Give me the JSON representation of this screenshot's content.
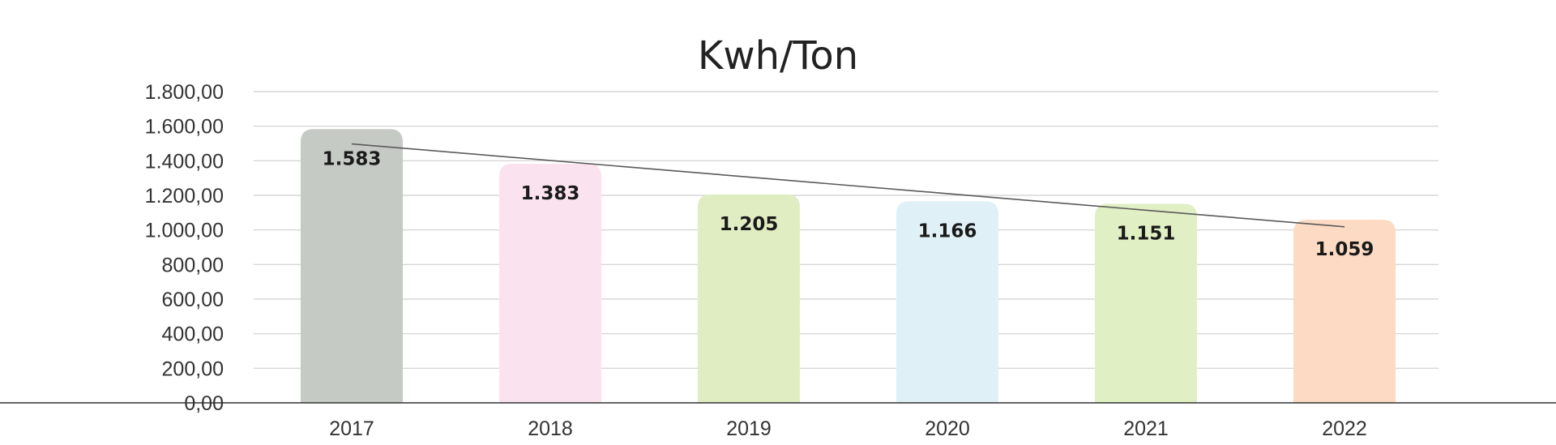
{
  "chart_data": {
    "type": "bar",
    "title": "Kwh/Ton",
    "xlabel": "",
    "ylabel": "",
    "categories": [
      "2017",
      "2018",
      "2019",
      "2020",
      "2021",
      "2022"
    ],
    "values": [
      1583,
      1383,
      1205,
      1166,
      1151,
      1059
    ],
    "data_labels": [
      "1.583",
      "1.383",
      "1.205",
      "1.166",
      "1.151",
      "1.059"
    ],
    "bar_colors": [
      "#c5cbc4",
      "#fae3ee",
      "#e0edc2",
      "#dff1f7",
      "#e1efc4",
      "#fcdac3"
    ],
    "trendline": {
      "type": "linear",
      "color": "#5a5a5a"
    },
    "ylim": [
      0,
      1800
    ],
    "y_ticks": [
      {
        "value": 0,
        "label": "0,00"
      },
      {
        "value": 200,
        "label": "200,00"
      },
      {
        "value": 400,
        "label": "400,00"
      },
      {
        "value": 600,
        "label": "600,00"
      },
      {
        "value": 800,
        "label": "800,00"
      },
      {
        "value": 1000,
        "label": "1.000,00"
      },
      {
        "value": 1200,
        "label": "1.200,00"
      },
      {
        "value": 1400,
        "label": "1.400,00"
      },
      {
        "value": 1600,
        "label": "1.600,00"
      },
      {
        "value": 1800,
        "label": "1.800,00"
      }
    ],
    "grid": true,
    "legend": "none"
  }
}
